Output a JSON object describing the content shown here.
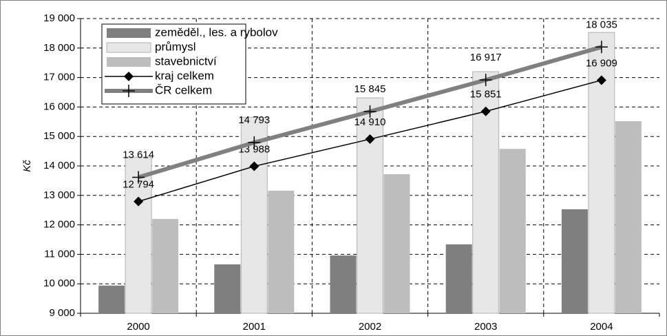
{
  "chart_data": {
    "type": "bar",
    "y_label": "Kč",
    "categories": [
      "2000",
      "2001",
      "2002",
      "2003",
      "2004"
    ],
    "series": [
      {
        "name": "zeměděl., les. a rybolov",
        "type": "bar",
        "color": "#7f7f7f",
        "values": [
          9940,
          10660,
          10960,
          11340,
          12530
        ]
      },
      {
        "name": "průmysl",
        "type": "bar",
        "color": "#e6e6e6",
        "values": [
          14300,
          15650,
          16310,
          17200,
          18530
        ]
      },
      {
        "name": "stavebnictví",
        "type": "bar",
        "color": "#bdbdbd",
        "values": [
          12200,
          13160,
          13720,
          14580,
          15520
        ]
      },
      {
        "name": "kraj celkem",
        "type": "line",
        "color": "#000000",
        "marker": "diamond",
        "values": [
          12794,
          13988,
          14910,
          15851,
          16909
        ],
        "value_labels": [
          "12 794",
          "13 988",
          "14 910",
          "15 851",
          "16 909"
        ]
      },
      {
        "name": "ČR celkem",
        "type": "line",
        "color": "#808080",
        "marker": "plus",
        "values": [
          13614,
          14793,
          15845,
          16917,
          18035
        ],
        "value_labels": [
          "13 614",
          "14 793",
          "15 845",
          "16 917",
          "18 035"
        ]
      }
    ],
    "ylim": [
      9000,
      19000
    ],
    "yticks": [
      {
        "value": 9000,
        "label": "9 000"
      },
      {
        "value": 10000,
        "label": "10 000"
      },
      {
        "value": 11000,
        "label": "11 000"
      },
      {
        "value": 12000,
        "label": "12 000"
      },
      {
        "value": 13000,
        "label": "13 000"
      },
      {
        "value": 14000,
        "label": "14 000"
      },
      {
        "value": 15000,
        "label": "15 000"
      },
      {
        "value": 16000,
        "label": "16 000"
      },
      {
        "value": 17000,
        "label": "17 000"
      },
      {
        "value": 18000,
        "label": "18 000"
      },
      {
        "value": 19000,
        "label": "19 000"
      }
    ],
    "grid": true,
    "legend": "top-left"
  }
}
